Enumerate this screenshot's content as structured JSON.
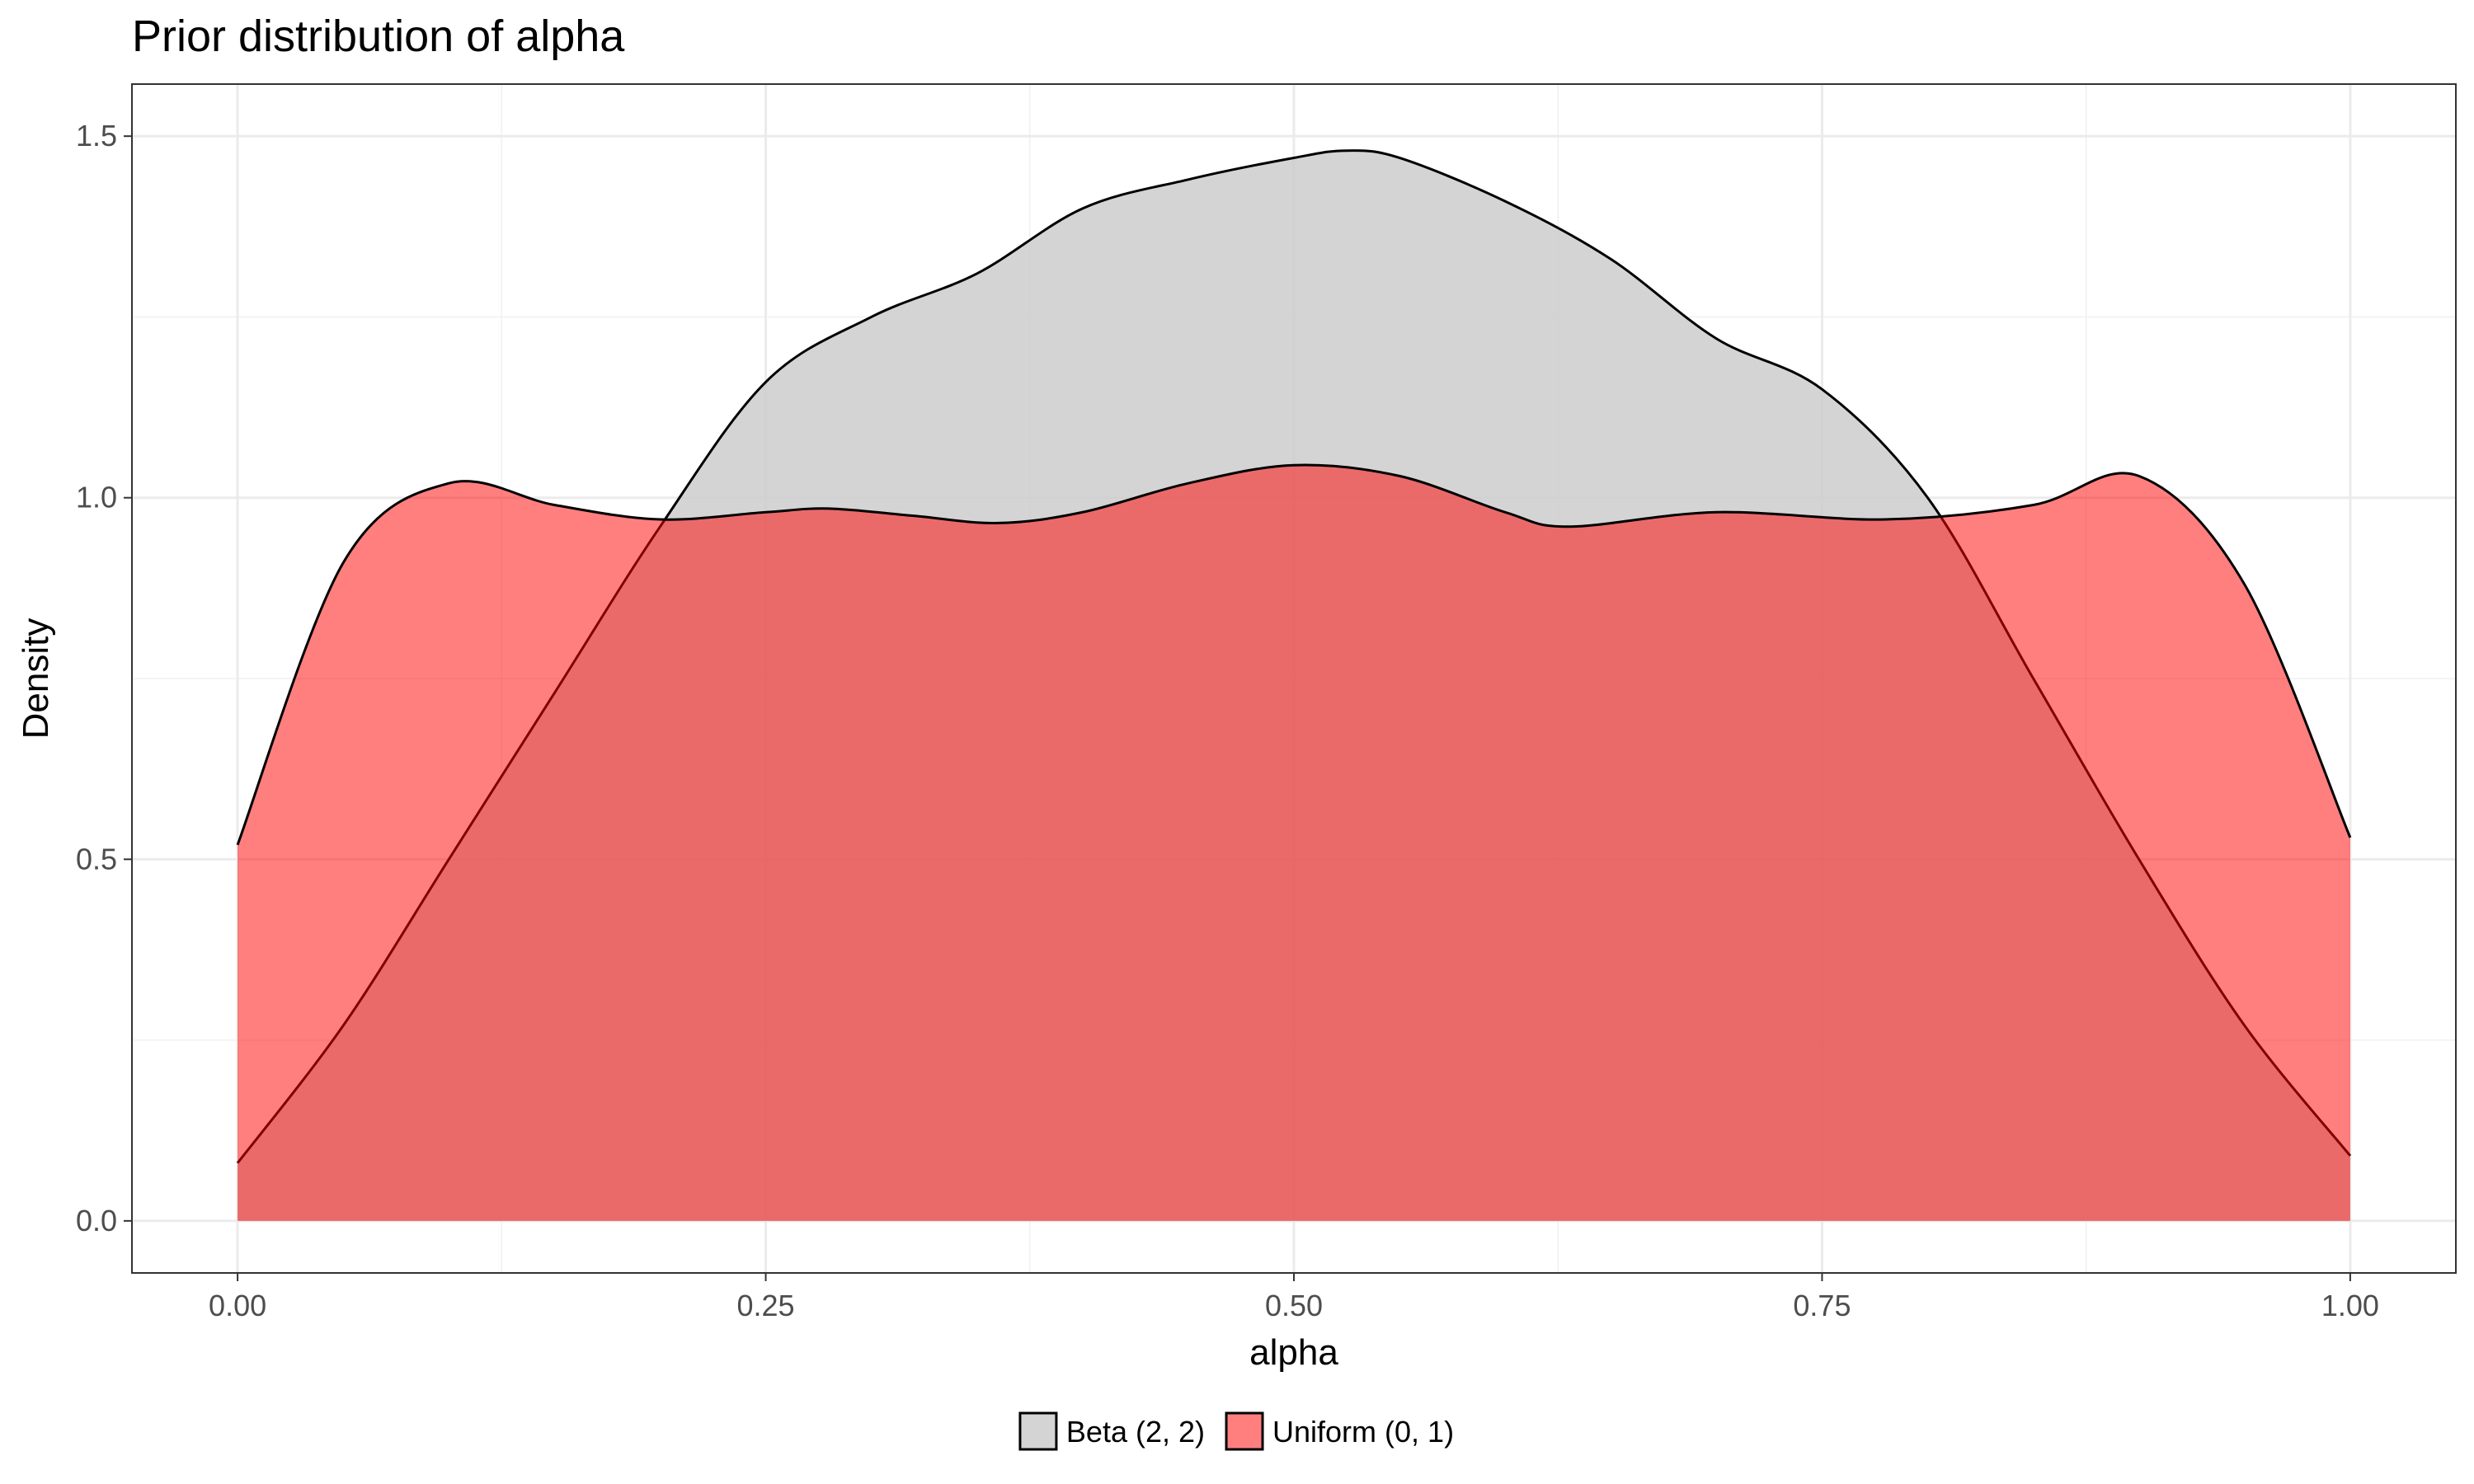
{
  "chart_data": {
    "type": "area",
    "title": "Prior distribution of alpha",
    "xlabel": "alpha",
    "ylabel": "Density",
    "xlim": [
      -0.05,
      1.05
    ],
    "ylim": [
      -0.072,
      1.572
    ],
    "x_ticks": [
      0.0,
      0.25,
      0.5,
      0.75,
      1.0
    ],
    "x_tick_labels": [
      "0.00",
      "0.25",
      "0.50",
      "0.75",
      "1.00"
    ],
    "y_ticks": [
      0.0,
      0.5,
      1.0,
      1.5
    ],
    "y_tick_labels": [
      "0.0",
      "0.5",
      "1.0",
      "1.5"
    ],
    "grid": true,
    "legend_position": "bottom",
    "series": [
      {
        "name": "Beta (2, 2)",
        "color": "#cccccc",
        "x": [
          0.0,
          0.05,
          0.1,
          0.15,
          0.2,
          0.25,
          0.3,
          0.35,
          0.4,
          0.45,
          0.5,
          0.525,
          0.55,
          0.6,
          0.65,
          0.7,
          0.75,
          0.8,
          0.85,
          0.9,
          0.95,
          1.0
        ],
        "y": [
          0.08,
          0.27,
          0.5,
          0.73,
          0.96,
          1.16,
          1.25,
          1.31,
          1.4,
          1.44,
          1.47,
          1.48,
          1.47,
          1.41,
          1.33,
          1.22,
          1.15,
          1.0,
          0.75,
          0.5,
          0.27,
          0.09
        ]
      },
      {
        "name": "Uniform (0, 1)",
        "color": "#ff0000",
        "x": [
          0.0,
          0.05,
          0.1,
          0.15,
          0.2,
          0.25,
          0.28,
          0.32,
          0.36,
          0.4,
          0.45,
          0.5,
          0.55,
          0.6,
          0.63,
          0.7,
          0.78,
          0.85,
          0.9,
          0.95,
          1.0
        ],
        "y": [
          0.52,
          0.91,
          1.02,
          0.99,
          0.97,
          0.98,
          0.985,
          0.975,
          0.965,
          0.98,
          1.02,
          1.045,
          1.03,
          0.98,
          0.96,
          0.98,
          0.97,
          0.99,
          1.03,
          0.88,
          0.53
        ]
      }
    ]
  }
}
